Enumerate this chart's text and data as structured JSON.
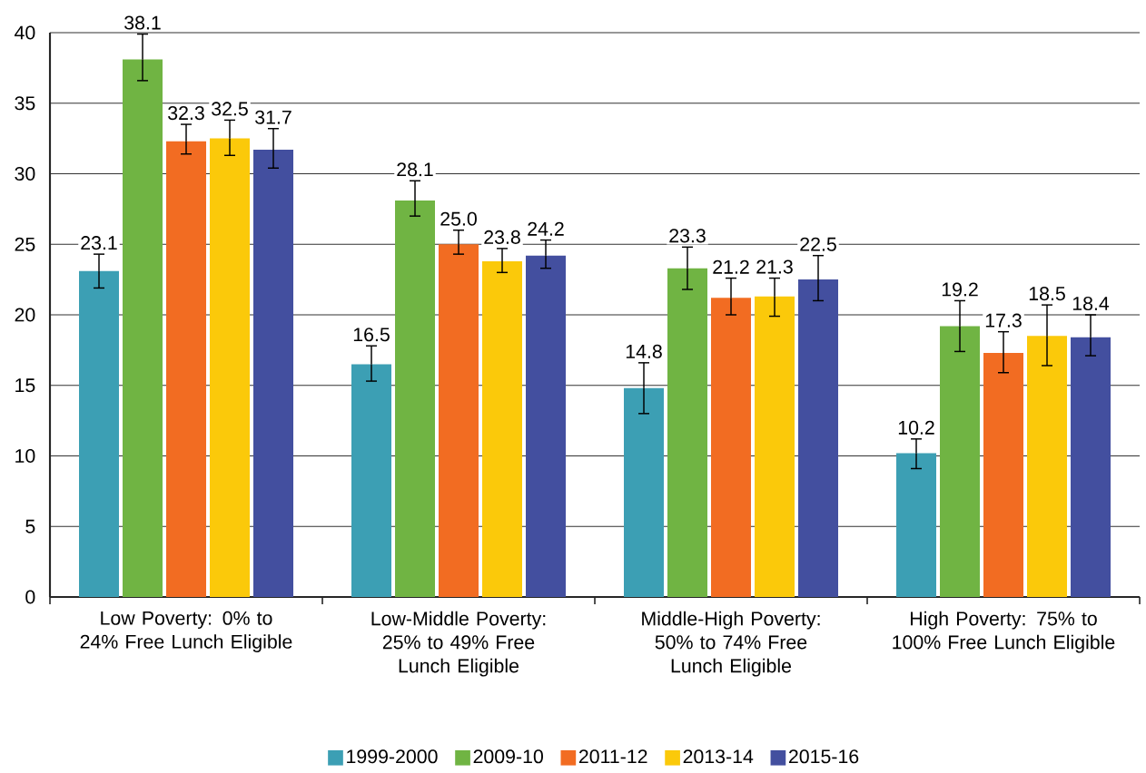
{
  "chart_data": {
    "type": "bar",
    "categories": [
      "Low Poverty: 0% to 24% Free Lunch Eligible",
      "Low-Middle Poverty: 25% to 49% Free Lunch Eligible",
      "Middle-High Poverty: 50% to 74% Free Lunch Eligible",
      "High Poverty: 75% to 100% Free Lunch Eligible"
    ],
    "series": [
      {
        "name": "1999-2000",
        "color": "#3c9fb4",
        "values": [
          23.1,
          16.5,
          14.8,
          10.2
        ],
        "errors": [
          [
            21.9,
            24.3
          ],
          [
            15.3,
            17.8
          ],
          [
            13.0,
            16.6
          ],
          [
            9.1,
            11.2
          ]
        ],
        "value_labels": [
          "23.1",
          "16.5",
          "14.8",
          "10.2"
        ]
      },
      {
        "name": "2009-10",
        "color": "#70b443",
        "values": [
          38.1,
          28.1,
          23.3,
          19.2
        ],
        "errors": [
          [
            36.6,
            39.9
          ],
          [
            27.0,
            29.5
          ],
          [
            21.8,
            24.8
          ],
          [
            17.4,
            21.0
          ]
        ],
        "value_labels": [
          "38.1",
          "28.1",
          "23.3",
          "19.2"
        ]
      },
      {
        "name": "2011-12",
        "color": "#f26c22",
        "values": [
          32.3,
          25.0,
          21.2,
          17.3
        ],
        "errors": [
          [
            31.4,
            33.5
          ],
          [
            24.3,
            26.0
          ],
          [
            20.0,
            22.6
          ],
          [
            15.9,
            18.8
          ]
        ],
        "value_labels": [
          "32.3",
          "25.0",
          "21.2",
          "17.3"
        ]
      },
      {
        "name": "2013-14",
        "color": "#fbc90a",
        "values": [
          32.5,
          23.8,
          21.3,
          18.5
        ],
        "errors": [
          [
            31.3,
            33.8
          ],
          [
            23.0,
            24.7
          ],
          [
            19.9,
            22.6
          ],
          [
            16.4,
            20.7
          ]
        ],
        "value_labels": [
          "32.5",
          "23.8",
          "21.3",
          "18.5"
        ]
      },
      {
        "name": "2015-16",
        "color": "#434f9f",
        "values": [
          31.7,
          24.2,
          22.5,
          18.4
        ],
        "errors": [
          [
            30.4,
            33.2
          ],
          [
            23.3,
            25.3
          ],
          [
            21.0,
            24.2
          ],
          [
            17.1,
            20.0
          ]
        ],
        "value_labels": [
          "31.7",
          "24.2",
          "22.5",
          "18.4"
        ]
      }
    ],
    "ylim": [
      0,
      40
    ],
    "yticks": [
      0,
      5,
      10,
      15,
      20,
      25,
      30,
      35,
      40
    ],
    "grid": "y",
    "legend": "bottom"
  }
}
